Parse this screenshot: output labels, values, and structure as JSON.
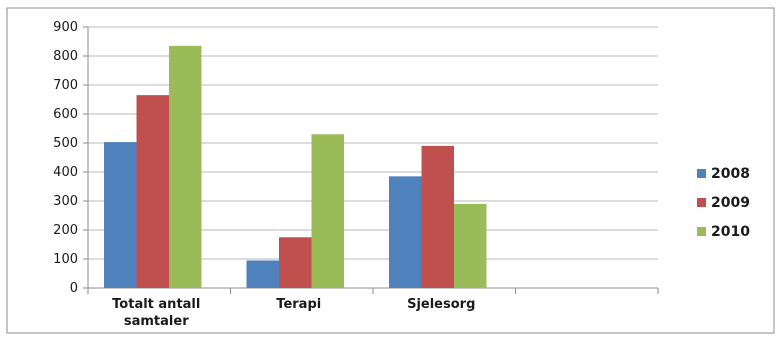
{
  "chart_data": {
    "type": "bar",
    "categories": [
      "Totalt antall samtaler",
      "Terapi",
      "Sjelesorg",
      ""
    ],
    "category_label_lines": [
      [
        "Totalt antall",
        "samtaler"
      ],
      [
        "Terapi"
      ],
      [
        "Sjelesorg"
      ],
      [
        ""
      ]
    ],
    "series": [
      {
        "name": "2008",
        "color": "#4f81bd",
        "values": [
          503,
          95,
          385,
          null
        ]
      },
      {
        "name": "2009",
        "color": "#c0504d",
        "values": [
          665,
          175,
          490,
          null
        ]
      },
      {
        "name": "2010",
        "color": "#9bbb59",
        "values": [
          835,
          530,
          290,
          null
        ]
      }
    ],
    "yticks": [
      "0",
      "100",
      "200",
      "300",
      "400",
      "500",
      "600",
      "700",
      "800",
      "900"
    ],
    "ylim": [
      0,
      900
    ],
    "grid": true,
    "legend_position": "right",
    "title": "",
    "xlabel": "",
    "ylabel": ""
  }
}
